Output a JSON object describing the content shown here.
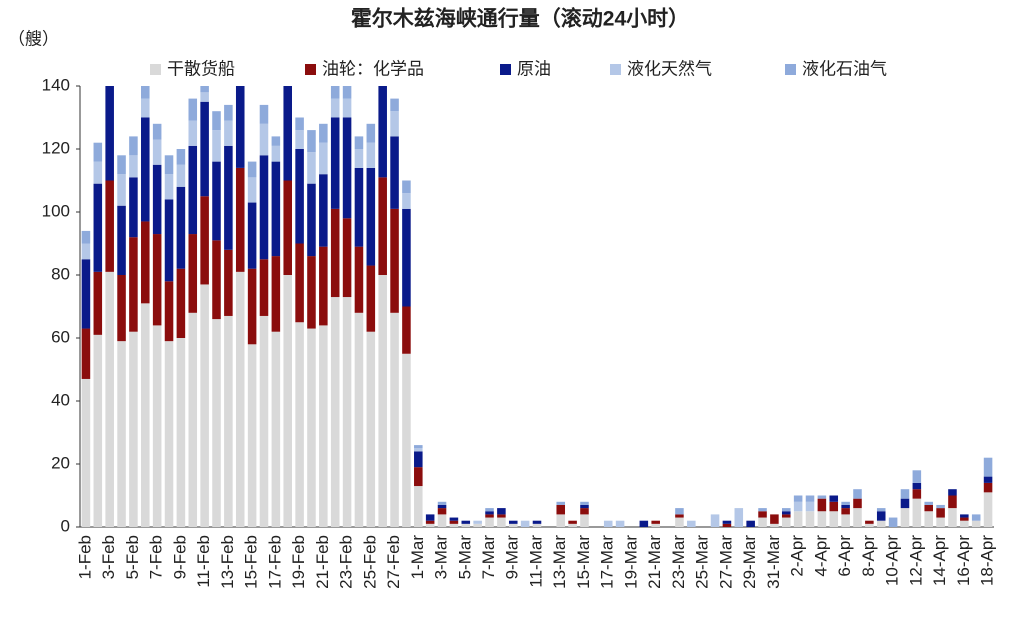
{
  "chart_data": {
    "type": "stacked_bar",
    "title": "霍尔木兹海峡通行量（滚动24小时）",
    "y_label": "（艘）",
    "categories": [
      "1-Feb",
      null,
      "3-Feb",
      null,
      "5-Feb",
      null,
      "7-Feb",
      null,
      "9-Feb",
      null,
      "11-Feb",
      null,
      "13-Feb",
      null,
      "15-Feb",
      null,
      "17-Feb",
      null,
      "19-Feb",
      null,
      "21-Feb",
      null,
      "23-Feb",
      null,
      "25-Feb",
      null,
      "27-Feb",
      null,
      "1-Mar",
      null,
      "3-Mar",
      null,
      "5-Mar",
      null,
      "7-Mar",
      null,
      "9-Mar",
      null,
      "11-Mar",
      null,
      "13-Mar",
      null,
      "15-Mar",
      null,
      "17-Mar",
      null,
      "19-Mar",
      null,
      "21-Mar",
      null,
      "23-Mar",
      null,
      "25-Mar",
      null,
      "27-Mar",
      null,
      "29-Mar",
      null,
      "31-Mar",
      null,
      "2-Apr",
      null,
      "4-Apr",
      null,
      "6-Apr",
      null,
      "8-Apr",
      null,
      "10-Apr",
      null,
      "12-Apr",
      null,
      "14-Apr",
      null,
      "16-Apr",
      null,
      "18-Apr"
    ],
    "series": [
      {
        "name": "干散货船",
        "color": "#d9d9d9",
        "values": [
          47,
          61,
          81,
          59,
          62,
          71,
          64,
          59,
          60,
          68,
          77,
          66,
          67,
          81,
          58,
          67,
          62,
          80,
          65,
          63,
          64,
          73,
          73,
          68,
          62,
          80,
          68,
          55,
          13,
          1,
          4,
          1,
          1,
          1,
          3,
          3,
          1,
          0,
          1,
          0,
          4,
          1,
          4,
          0,
          0,
          0,
          0,
          0,
          1,
          0,
          3,
          0,
          0,
          0,
          0,
          0,
          0,
          3,
          1,
          3,
          5,
          5,
          5,
          5,
          4,
          6,
          1,
          2,
          0,
          6,
          9,
          5,
          3,
          6,
          2,
          2,
          11
        ]
      },
      {
        "name": "油轮：化学品",
        "color": "#8b0d0d",
        "values": [
          16,
          20,
          29,
          21,
          30,
          26,
          29,
          19,
          22,
          25,
          28,
          25,
          21,
          33,
          24,
          18,
          24,
          30,
          25,
          23,
          25,
          28,
          25,
          21,
          21,
          31,
          33,
          15,
          6,
          1,
          2,
          1,
          0,
          0,
          1,
          1,
          0,
          0,
          0,
          0,
          3,
          1,
          2,
          0,
          0,
          0,
          0,
          0,
          1,
          0,
          1,
          0,
          0,
          0,
          1,
          0,
          0,
          2,
          3,
          1,
          0,
          0,
          4,
          3,
          2,
          3,
          1,
          0,
          0,
          0,
          3,
          2,
          3,
          4,
          1,
          0,
          3
        ]
      },
      {
        "name": "原油",
        "color": "#0a1a8a",
        "values": [
          22,
          28,
          30,
          22,
          19,
          33,
          22,
          26,
          26,
          28,
          30,
          25,
          33,
          26,
          21,
          33,
          30,
          30,
          30,
          23,
          23,
          29,
          32,
          25,
          31,
          29,
          23,
          31,
          5,
          2,
          1,
          1,
          1,
          0,
          1,
          2,
          1,
          0,
          1,
          0,
          0,
          0,
          1,
          0,
          0,
          0,
          0,
          2,
          0,
          0,
          0,
          0,
          0,
          0,
          1,
          0,
          2,
          0,
          0,
          1,
          0,
          0,
          0,
          2,
          1,
          0,
          0,
          3,
          0,
          3,
          2,
          0,
          0,
          2,
          1,
          0,
          2
        ]
      },
      {
        "name": "液化天然气",
        "color": "#b4c7e7",
        "values": [
          5,
          7,
          0,
          10,
          7,
          6,
          8,
          8,
          7,
          8,
          3,
          10,
          8,
          0,
          8,
          10,
          5,
          0,
          6,
          10,
          10,
          6,
          6,
          6,
          8,
          0,
          8,
          5,
          1,
          0,
          0,
          0,
          0,
          1,
          0,
          0,
          0,
          2,
          0,
          0,
          0,
          0,
          0,
          0,
          2,
          2,
          0,
          0,
          0,
          0,
          0,
          2,
          0,
          4,
          0,
          6,
          0,
          0,
          0,
          0,
          3,
          3,
          0,
          0,
          0,
          0,
          0,
          0,
          0,
          0,
          0,
          0,
          0,
          0,
          0,
          0,
          0
        ]
      },
      {
        "name": "液化石油气",
        "color": "#8eaadb",
        "values": [
          4,
          6,
          0,
          6,
          6,
          4,
          5,
          6,
          5,
          7,
          2,
          6,
          5,
          0,
          5,
          6,
          3,
          0,
          4,
          7,
          6,
          4,
          4,
          4,
          6,
          0,
          4,
          4,
          1,
          0,
          1,
          0,
          0,
          0,
          1,
          0,
          0,
          0,
          0,
          0,
          1,
          0,
          1,
          0,
          0,
          0,
          0,
          0,
          0,
          0,
          2,
          0,
          0,
          0,
          0,
          0,
          0,
          1,
          0,
          1,
          2,
          2,
          1,
          0,
          1,
          3,
          0,
          1,
          3,
          3,
          4,
          1,
          1,
          0,
          0,
          2,
          6
        ]
      }
    ],
    "ylim": [
      0,
      140
    ],
    "yticks": [
      0,
      20,
      40,
      60,
      80,
      100,
      120,
      140
    ],
    "legend": "top"
  }
}
